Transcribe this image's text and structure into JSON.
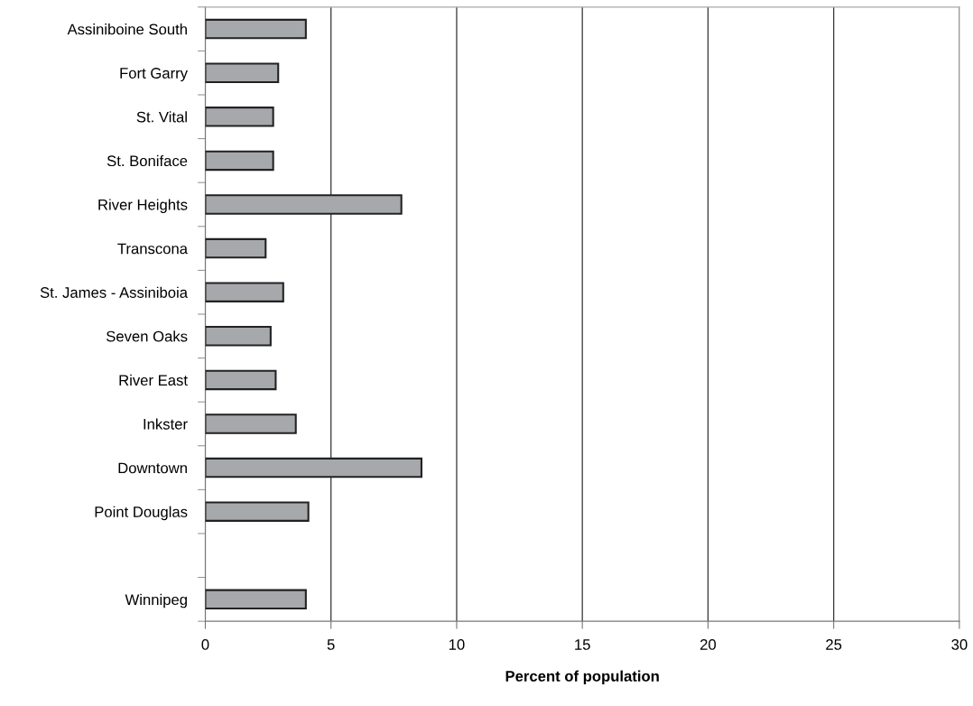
{
  "chart_data": {
    "type": "bar",
    "orientation": "horizontal",
    "xlabel": "Percent of population",
    "categories": [
      "Assiniboine South",
      "Fort Garry",
      "St. Vital",
      "St. Boniface",
      "River Heights",
      "Transcona",
      "St. James - Assiniboia",
      "Seven Oaks",
      "River East",
      "Inkster",
      "Downtown",
      "Point Douglas",
      null,
      "Winnipeg"
    ],
    "values": [
      4.0,
      2.9,
      2.7,
      2.7,
      7.8,
      2.4,
      3.1,
      2.6,
      2.8,
      3.6,
      8.6,
      4.1,
      null,
      4.0
    ],
    "color": "#a6a8ab",
    "xlim": [
      0,
      30
    ],
    "xticks": [
      0,
      5,
      10,
      15,
      20,
      25,
      30
    ],
    "grid": "x"
  }
}
